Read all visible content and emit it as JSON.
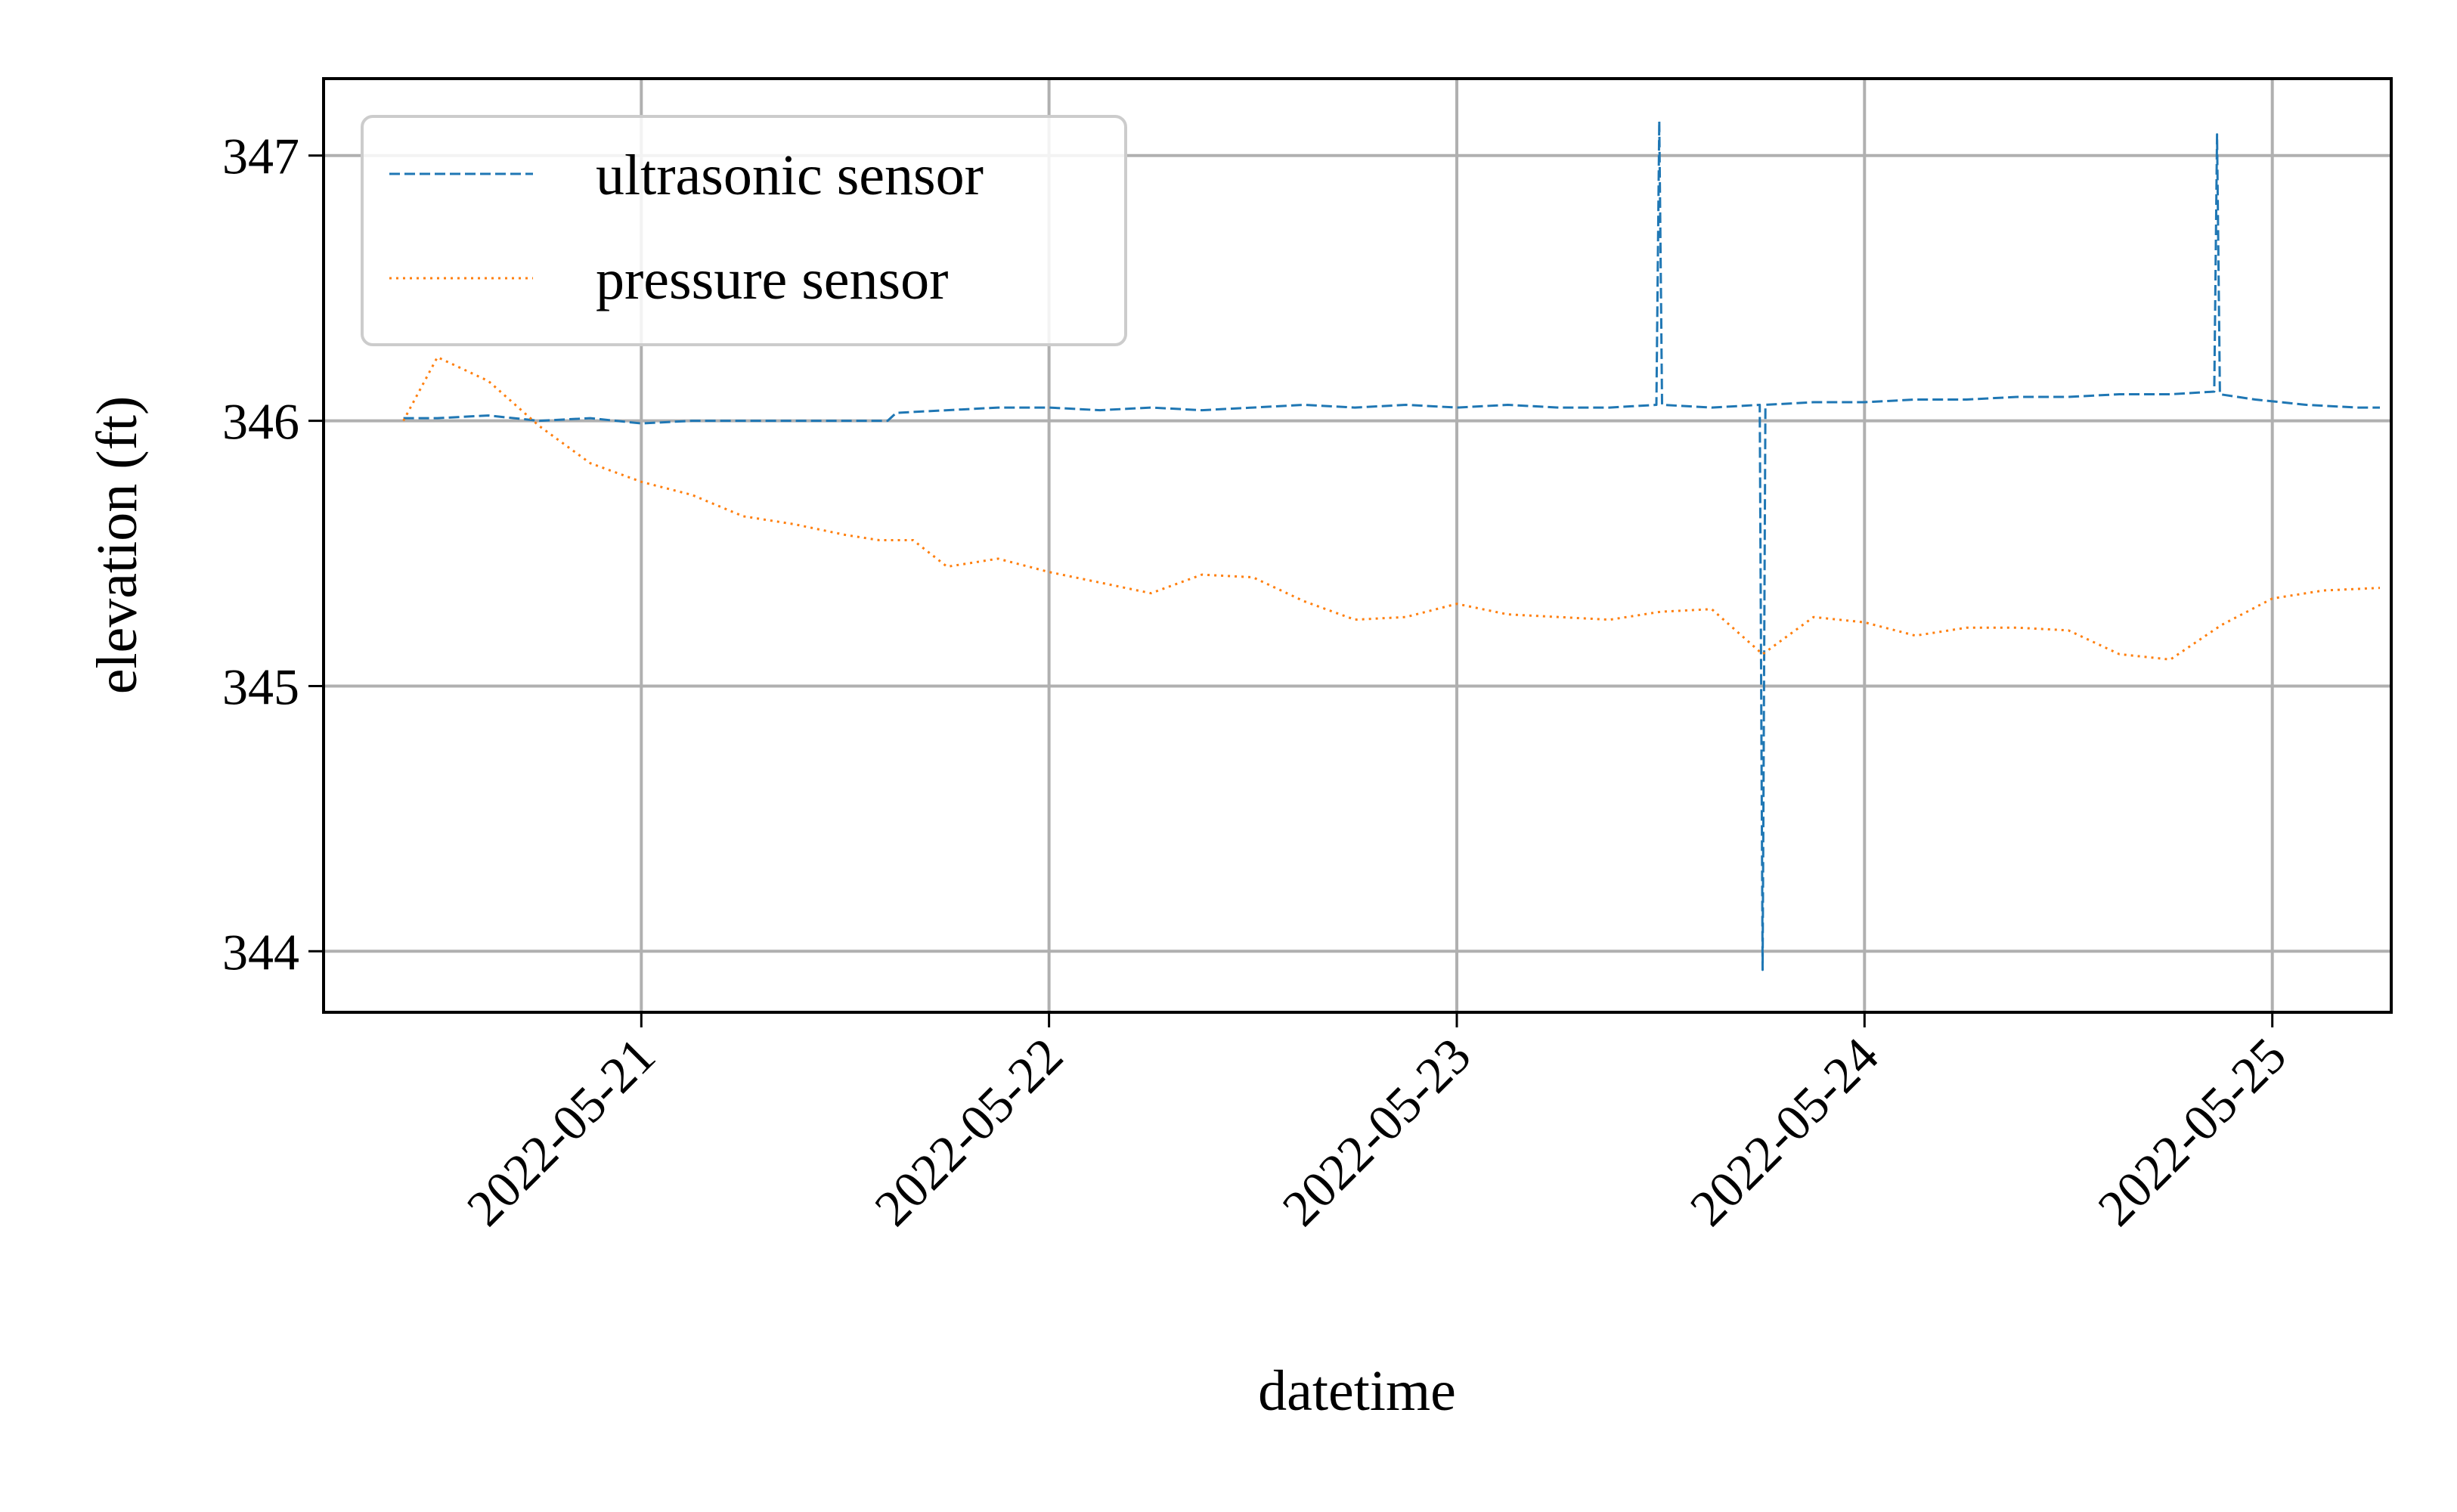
{
  "chart_data": {
    "type": "line",
    "title": "",
    "xlabel": "datetime",
    "ylabel": "elevation (ft)",
    "x_type": "datetime",
    "xlim": [
      "2022-05-20T05:18",
      "2022-05-25T07:00"
    ],
    "ylim": [
      343.77,
      347.29
    ],
    "grid": true,
    "legend": "top-left",
    "xticks": [
      "2022-05-21",
      "2022-05-22",
      "2022-05-23",
      "2022-05-24",
      "2022-05-25"
    ],
    "yticks": [
      344,
      345,
      346,
      347
    ],
    "series": [
      {
        "name": "ultrasonic sensor",
        "color": "#1f77b4",
        "linestyle": "dashed",
        "x": [
          "2022-05-20T10:00",
          "2022-05-20T12:00",
          "2022-05-20T15:00",
          "2022-05-20T18:00",
          "2022-05-20T21:00",
          "2022-05-21T00:00",
          "2022-05-21T03:00",
          "2022-05-21T06:00",
          "2022-05-21T09:00",
          "2022-05-21T12:00",
          "2022-05-21T14:30",
          "2022-05-21T15:00",
          "2022-05-21T18:00",
          "2022-05-21T21:00",
          "2022-05-22T00:00",
          "2022-05-22T03:00",
          "2022-05-22T06:00",
          "2022-05-22T09:00",
          "2022-05-22T12:00",
          "2022-05-22T15:00",
          "2022-05-22T18:00",
          "2022-05-22T21:00",
          "2022-05-23T00:00",
          "2022-05-23T03:00",
          "2022-05-23T06:00",
          "2022-05-23T09:00",
          "2022-05-23T11:45",
          "2022-05-23T11:55",
          "2022-05-23T12:05",
          "2022-05-23T15:00",
          "2022-05-23T17:50",
          "2022-05-23T18:00",
          "2022-05-23T18:10",
          "2022-05-23T21:00",
          "2022-05-24T00:00",
          "2022-05-24T03:00",
          "2022-05-24T06:00",
          "2022-05-24T09:00",
          "2022-05-24T12:00",
          "2022-05-24T15:00",
          "2022-05-24T18:00",
          "2022-05-24T20:35",
          "2022-05-24T20:45",
          "2022-05-24T20:55",
          "2022-05-24T23:00",
          "2022-05-25T02:00",
          "2022-05-25T05:00",
          "2022-05-25T06:20"
        ],
        "values": [
          346.01,
          346.01,
          346.02,
          346.0,
          346.01,
          345.99,
          346.0,
          346.0,
          346.0,
          346.0,
          346.0,
          346.03,
          346.04,
          346.05,
          346.05,
          346.04,
          346.05,
          346.04,
          346.05,
          346.06,
          346.05,
          346.06,
          346.05,
          346.06,
          346.05,
          346.05,
          346.06,
          347.13,
          346.06,
          346.05,
          346.06,
          343.93,
          346.06,
          346.07,
          346.07,
          346.08,
          346.08,
          346.09,
          346.09,
          346.1,
          346.1,
          346.11,
          347.08,
          346.1,
          346.08,
          346.06,
          346.05,
          346.05
        ]
      },
      {
        "name": "pressure sensor",
        "color": "#ff7f0e",
        "linestyle": "dotted",
        "x": [
          "2022-05-20T10:00",
          "2022-05-20T12:00",
          "2022-05-20T15:00",
          "2022-05-20T18:00",
          "2022-05-20T21:00",
          "2022-05-21T00:00",
          "2022-05-21T03:00",
          "2022-05-21T06:00",
          "2022-05-21T09:00",
          "2022-05-21T12:00",
          "2022-05-21T14:00",
          "2022-05-21T16:00",
          "2022-05-21T18:00",
          "2022-05-21T21:00",
          "2022-05-22T00:00",
          "2022-05-22T03:00",
          "2022-05-22T06:00",
          "2022-05-22T09:00",
          "2022-05-22T12:00",
          "2022-05-22T15:00",
          "2022-05-22T18:00",
          "2022-05-22T21:00",
          "2022-05-23T00:00",
          "2022-05-23T03:00",
          "2022-05-23T06:00",
          "2022-05-23T09:00",
          "2022-05-23T12:00",
          "2022-05-23T15:00",
          "2022-05-23T18:00",
          "2022-05-23T21:00",
          "2022-05-24T00:00",
          "2022-05-24T03:00",
          "2022-05-24T06:00",
          "2022-05-24T09:00",
          "2022-05-24T12:00",
          "2022-05-24T15:00",
          "2022-05-24T18:00",
          "2022-05-24T21:00",
          "2022-05-25T00:00",
          "2022-05-25T03:00",
          "2022-05-25T06:20"
        ],
        "values": [
          346.0,
          346.24,
          346.15,
          345.98,
          345.84,
          345.77,
          345.72,
          345.64,
          345.61,
          345.57,
          345.55,
          345.55,
          345.45,
          345.48,
          345.43,
          345.39,
          345.35,
          345.42,
          345.41,
          345.32,
          345.25,
          345.26,
          345.31,
          345.27,
          345.26,
          345.25,
          345.28,
          345.29,
          345.12,
          345.26,
          345.24,
          345.19,
          345.22,
          345.22,
          345.21,
          345.12,
          345.1,
          345.23,
          345.33,
          345.36,
          345.37
        ]
      }
    ]
  }
}
